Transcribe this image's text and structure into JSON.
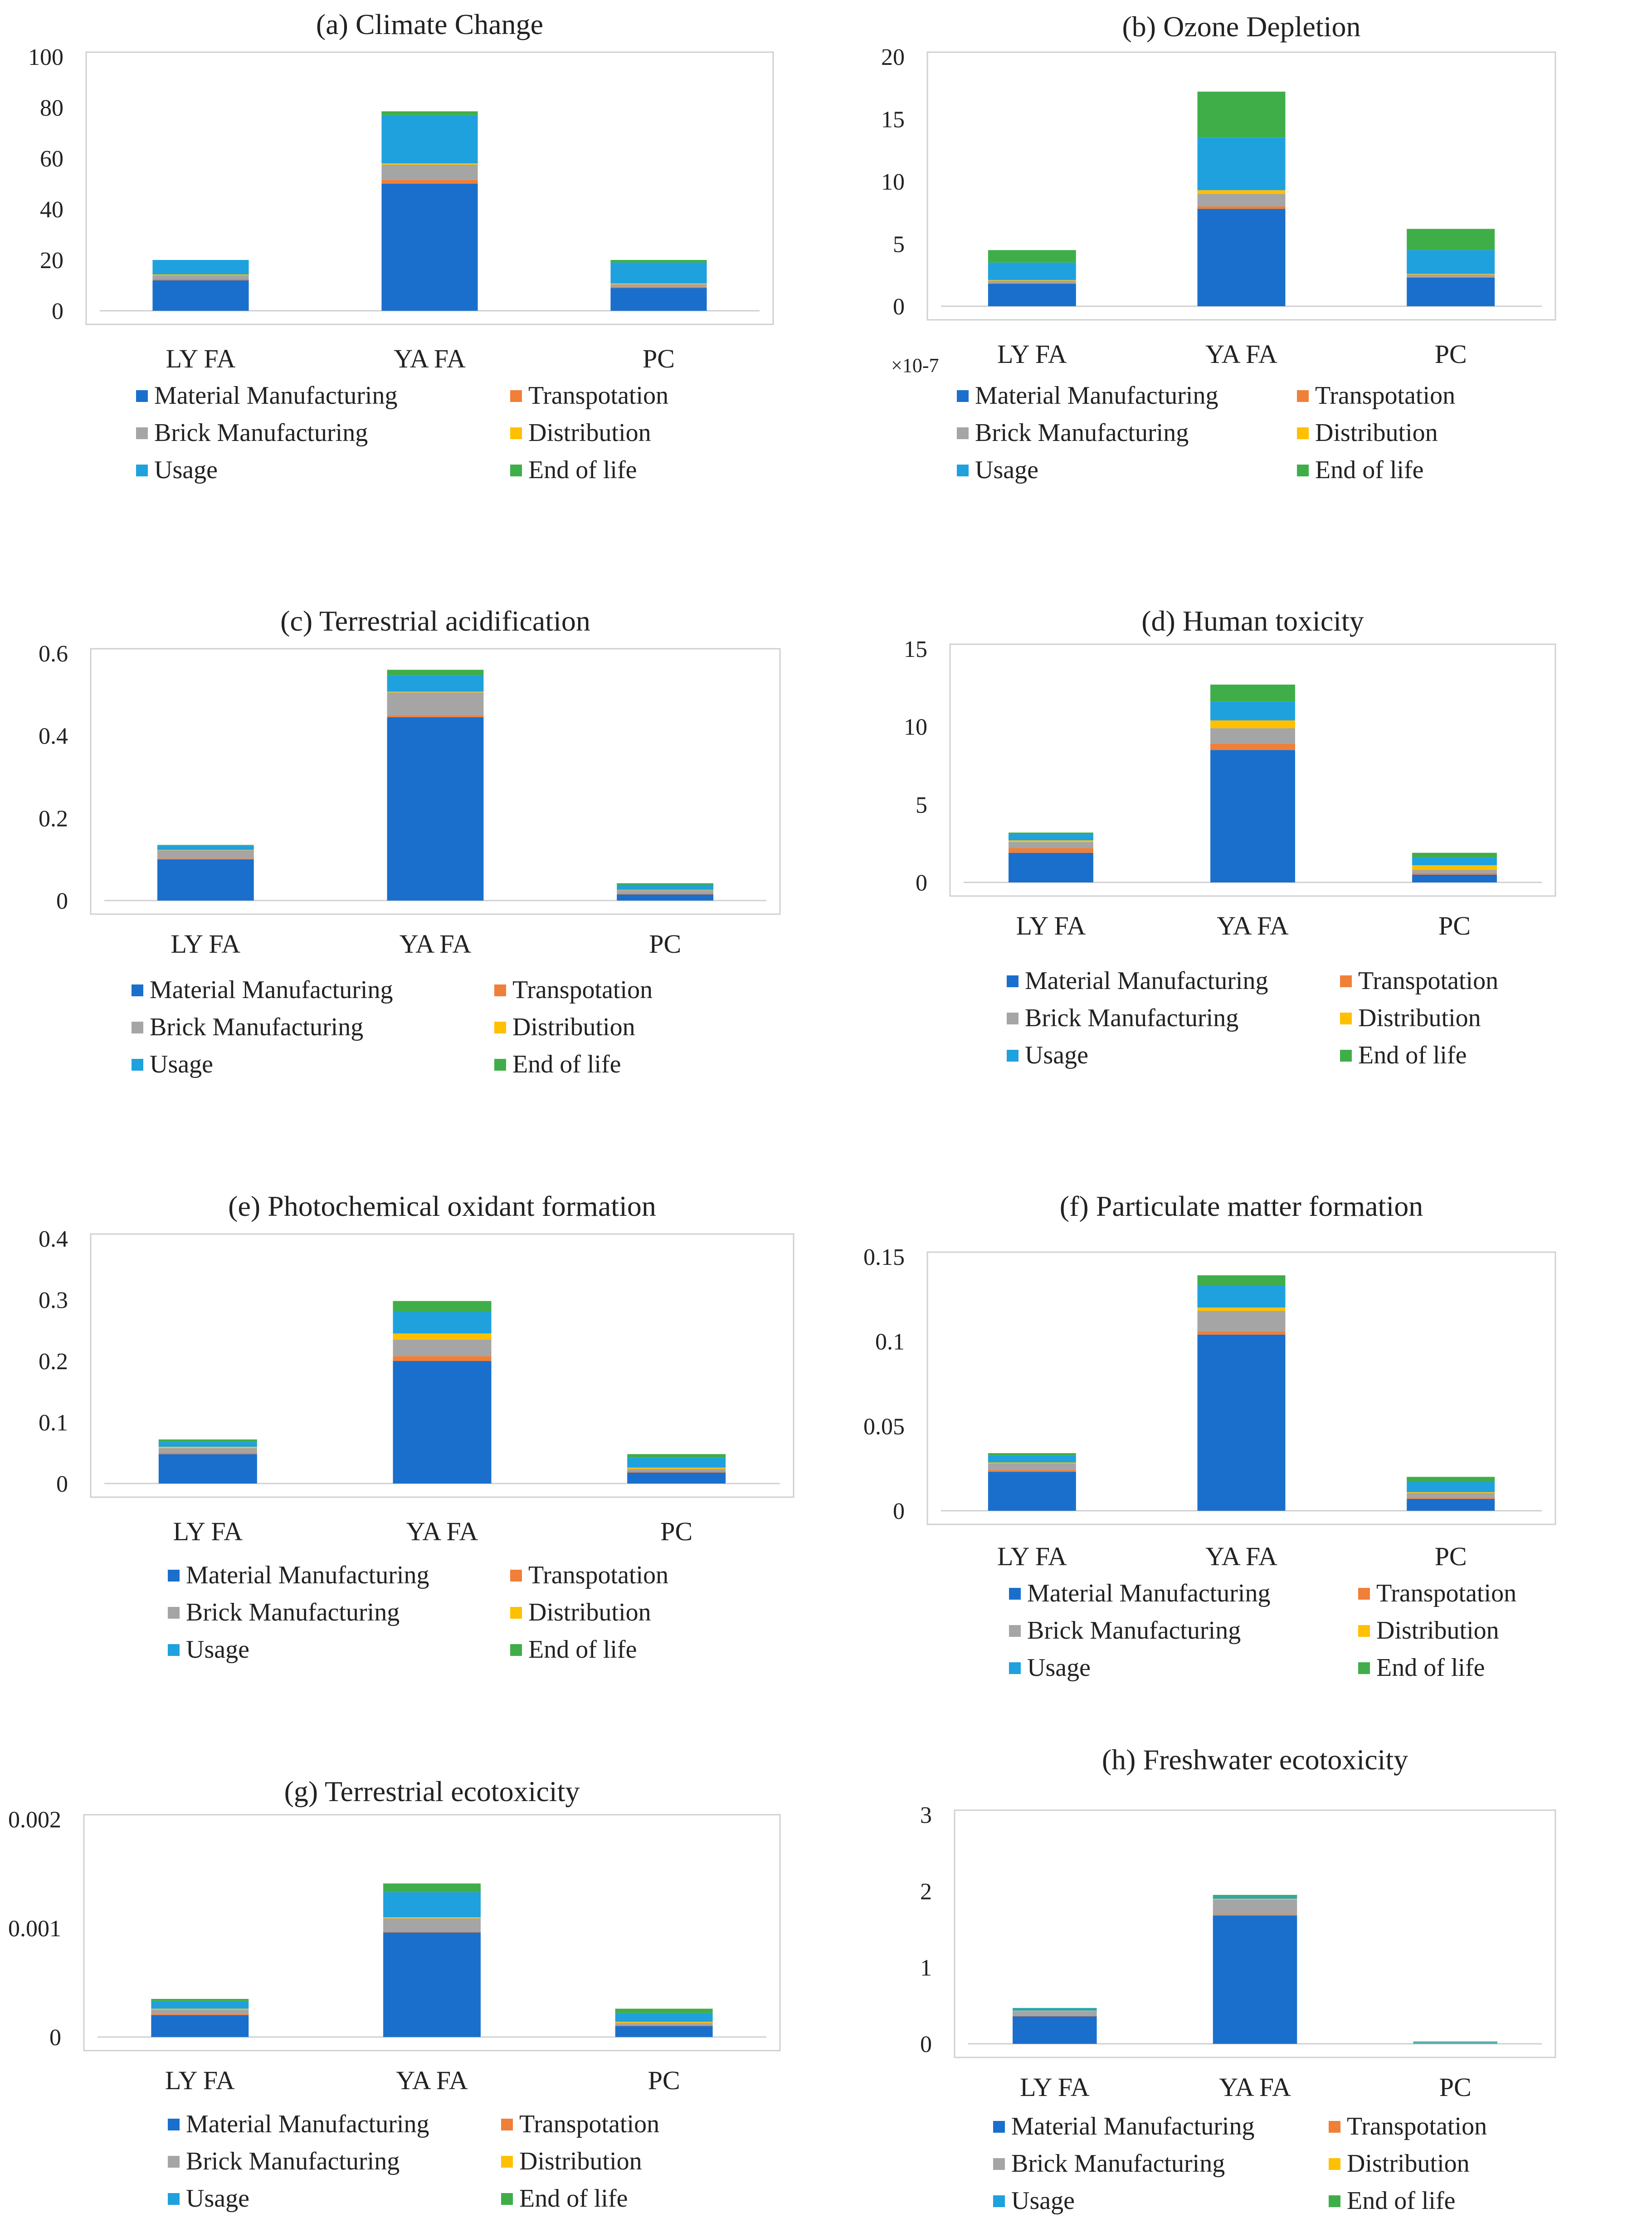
{
  "colors": {
    "Material  Manufacturing": "#1a6fcc",
    "Transpotation": "#f07f38",
    "Brick Manufacturing": "#a5a5a5",
    "Distribution": "#ffc000",
    "Usage": "#1fa1de",
    "End of life": "#3fae49"
  },
  "legend_order": [
    "Material  Manufacturing",
    "Transpotation",
    "Brick Manufacturing",
    "Distribution",
    "Usage",
    "End of life"
  ],
  "chart_data": [
    {
      "type": "bar",
      "stacked": true,
      "title": "(a) Climate Change",
      "categories": [
        "LY FA",
        "YA FA",
        "PC"
      ],
      "yticks": [
        "0",
        "20",
        "40",
        "60",
        "80",
        "100"
      ],
      "ylim": [
        0,
        100
      ],
      "series": [
        {
          "name": "Material  Manufacturing",
          "values": [
            12,
            50,
            9
          ]
        },
        {
          "name": "Transpotation",
          "values": [
            0.5,
            1.5,
            0.5
          ]
        },
        {
          "name": "Brick Manufacturing",
          "values": [
            1.5,
            6,
            1
          ]
        },
        {
          "name": "Distribution",
          "values": [
            0.3,
            0.5,
            0.3
          ]
        },
        {
          "name": "Usage",
          "values": [
            5.7,
            19,
            8.2
          ]
        },
        {
          "name": "End of life",
          "values": [
            0,
            1.5,
            1
          ]
        }
      ]
    },
    {
      "type": "bar",
      "stacked": true,
      "title": "(b) Ozone Depletion",
      "categories": [
        "LY FA",
        "YA FA",
        "PC"
      ],
      "yticks": [
        "0",
        "5",
        "10",
        "15",
        "20"
      ],
      "ylim": [
        0,
        20
      ],
      "multiplier": "×10-7",
      "series": [
        {
          "name": "Material  Manufacturing",
          "values": [
            1.8,
            7.8,
            2.3
          ]
        },
        {
          "name": "Transpotation",
          "values": [
            0.05,
            0.2,
            0.05
          ]
        },
        {
          "name": "Brick Manufacturing",
          "values": [
            0.2,
            1,
            0.2
          ]
        },
        {
          "name": "Distribution",
          "values": [
            0.05,
            0.3,
            0.05
          ]
        },
        {
          "name": "Usage",
          "values": [
            1.4,
            4.2,
            1.9
          ]
        },
        {
          "name": "End of life",
          "values": [
            1,
            3.7,
            1.7
          ]
        }
      ]
    },
    {
      "type": "bar",
      "stacked": true,
      "title": "(c) Terrestrial acidification",
      "categories": [
        "LY FA",
        "YA FA",
        "PC"
      ],
      "yticks": [
        "0",
        "0.2",
        "0.4",
        "0.6"
      ],
      "ylim": [
        0,
        0.6
      ],
      "series": [
        {
          "name": "Material  Manufacturing",
          "values": [
            0.1,
            0.445,
            0.015
          ]
        },
        {
          "name": "Transpotation",
          "values": [
            0.002,
            0.005,
            0.002
          ]
        },
        {
          "name": "Brick Manufacturing",
          "values": [
            0.02,
            0.055,
            0.008
          ]
        },
        {
          "name": "Distribution",
          "values": [
            0.001,
            0.002,
            0.001
          ]
        },
        {
          "name": "Usage",
          "values": [
            0.01,
            0.04,
            0.012
          ]
        },
        {
          "name": "End of life",
          "values": [
            0.002,
            0.013,
            0.004
          ]
        }
      ]
    },
    {
      "type": "bar",
      "stacked": true,
      "title": "(d) Human  toxicity",
      "categories": [
        "LY FA",
        "YA FA",
        "PC"
      ],
      "yticks": [
        "0",
        "5",
        "10",
        "15"
      ],
      "ylim": [
        0,
        15
      ],
      "series": [
        {
          "name": "Material  Manufacturing",
          "values": [
            1.9,
            8.5,
            0.5
          ]
        },
        {
          "name": "Transpotation",
          "values": [
            0.3,
            0.4,
            0.1
          ]
        },
        {
          "name": "Brick Manufacturing",
          "values": [
            0.4,
            1,
            0.2
          ]
        },
        {
          "name": "Distribution",
          "values": [
            0.1,
            0.5,
            0.3
          ]
        },
        {
          "name": "Usage",
          "values": [
            0.4,
            1.2,
            0.5
          ]
        },
        {
          "name": "End of life",
          "values": [
            0.1,
            1.1,
            0.3
          ]
        }
      ]
    },
    {
      "type": "bar",
      "stacked": true,
      "title": "(e) Photochemical  oxidant  formation",
      "categories": [
        "LY FA",
        "YA FA",
        "PC"
      ],
      "yticks": [
        "0",
        "0.1",
        "0.2",
        "0.3",
        "0.4"
      ],
      "ylim": [
        0,
        0.4
      ],
      "series": [
        {
          "name": "Material  Manufacturing",
          "values": [
            0.048,
            0.2,
            0.018
          ]
        },
        {
          "name": "Transpotation",
          "values": [
            0.002,
            0.008,
            0.002
          ]
        },
        {
          "name": "Brick Manufacturing",
          "values": [
            0.008,
            0.027,
            0.004
          ]
        },
        {
          "name": "Distribution",
          "values": [
            0.002,
            0.01,
            0.002
          ]
        },
        {
          "name": "Usage",
          "values": [
            0.008,
            0.035,
            0.016
          ]
        },
        {
          "name": "End of life",
          "values": [
            0.004,
            0.018,
            0.006
          ]
        }
      ]
    },
    {
      "type": "bar",
      "stacked": true,
      "title": "(f) Particulate matter  formation",
      "categories": [
        "LY FA",
        "YA FA",
        "PC"
      ],
      "yticks": [
        "0",
        "0.05",
        "0.1",
        "0.15"
      ],
      "ylim": [
        0,
        0.15
      ],
      "series": [
        {
          "name": "Material  Manufacturing",
          "values": [
            0.023,
            0.104,
            0.007
          ]
        },
        {
          "name": "Transpotation",
          "values": [
            0.001,
            0.002,
            0.0005
          ]
        },
        {
          "name": "Brick Manufacturing",
          "values": [
            0.004,
            0.012,
            0.003
          ]
        },
        {
          "name": "Distribution",
          "values": [
            0.0005,
            0.002,
            0.0005
          ]
        },
        {
          "name": "Usage",
          "values": [
            0.004,
            0.013,
            0.006
          ]
        },
        {
          "name": "End of life",
          "values": [
            0.0015,
            0.006,
            0.003
          ]
        }
      ]
    },
    {
      "type": "bar",
      "stacked": true,
      "title": "(g) Terrestrial  ecotoxicity",
      "categories": [
        "LY FA",
        "YA FA",
        "PC"
      ],
      "yticks": [
        "0",
        "0.001",
        "0.002"
      ],
      "ylim": [
        0,
        0.002
      ],
      "series": [
        {
          "name": "Material  Manufacturing",
          "values": [
            0.0002,
            0.00096,
            0.0001
          ]
        },
        {
          "name": "Transpotation",
          "values": [
            1e-05,
            1e-05,
            1e-05
          ]
        },
        {
          "name": "Brick Manufacturing",
          "values": [
            4e-05,
            0.00012,
            2e-05
          ]
        },
        {
          "name": "Distribution",
          "values": [
            1e-05,
            1e-05,
            1e-05
          ]
        },
        {
          "name": "Usage",
          "values": [
            7e-05,
            0.00023,
            8e-05
          ]
        },
        {
          "name": "End of life",
          "values": [
            2e-05,
            8e-05,
            4e-05
          ]
        }
      ]
    },
    {
      "type": "bar",
      "stacked": true,
      "title": "(h) Freshwater ecotoxicity",
      "categories": [
        "LY FA",
        "YA FA",
        "PC"
      ],
      "yticks": [
        "0",
        "1",
        "2",
        "3"
      ],
      "ylim": [
        0,
        3
      ],
      "series": [
        {
          "name": "Material  Manufacturing",
          "values": [
            0.36,
            1.68,
            0.005
          ]
        },
        {
          "name": "Transpotation",
          "values": [
            0.01,
            0.01,
            0.002
          ]
        },
        {
          "name": "Brick Manufacturing",
          "values": [
            0.06,
            0.2,
            0.005
          ]
        },
        {
          "name": "Distribution",
          "values": [
            0.005,
            0.01,
            0.002
          ]
        },
        {
          "name": "Usage",
          "values": [
            0.03,
            0.03,
            0.01
          ]
        },
        {
          "name": "End of life",
          "values": [
            0.005,
            0.02,
            0.006
          ]
        }
      ]
    }
  ]
}
